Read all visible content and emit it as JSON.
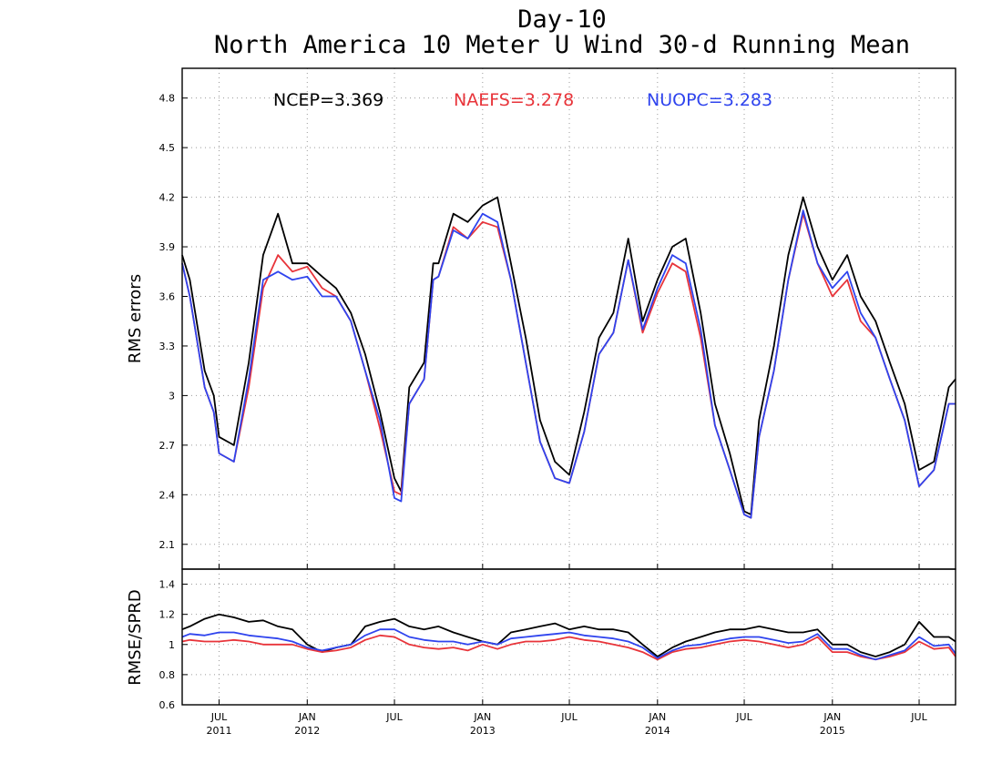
{
  "chart_data": [
    {
      "type": "line",
      "title": "Day-10",
      "subtitle": "North America 10 Meter U Wind 30-d Running Mean",
      "xlabel": "",
      "ylabel": "RMS errors",
      "ylim": [
        1.95,
        4.98
      ],
      "yticks": [
        "2.1",
        "2.4",
        "2.7",
        "3",
        "3.3",
        "3.6",
        "3.9",
        "4.2",
        "4.5",
        "4.8"
      ],
      "grid": true,
      "xlim": [
        "2011-04-15",
        "2015-09-15"
      ],
      "annotations": [
        {
          "text": "NCEP=3.369",
          "color": "#000000"
        },
        {
          "text": "NAEFS=3.278",
          "color": "#e8343a"
        },
        {
          "text": "NUOPC=3.283",
          "color": "#2f44ee"
        }
      ],
      "x": [
        "2011-04-15",
        "2011-05-01",
        "2011-06-01",
        "2011-06-20",
        "2011-07-01",
        "2011-08-01",
        "2011-09-01",
        "2011-10-01",
        "2011-11-01",
        "2011-12-01",
        "2012-01-01",
        "2012-02-01",
        "2012-03-01",
        "2012-04-01",
        "2012-05-01",
        "2012-06-01",
        "2012-07-01",
        "2012-07-15",
        "2012-08-01",
        "2012-09-01",
        "2012-09-20",
        "2012-10-01",
        "2012-11-01",
        "2012-12-01",
        "2013-01-01",
        "2013-02-01",
        "2013-03-01",
        "2013-04-01",
        "2013-05-01",
        "2013-06-01",
        "2013-07-01",
        "2013-08-01",
        "2013-09-01",
        "2013-10-01",
        "2013-11-01",
        "2013-12-01",
        "2014-01-01",
        "2014-02-01",
        "2014-03-01",
        "2014-04-01",
        "2014-05-01",
        "2014-06-01",
        "2014-07-01",
        "2014-07-15",
        "2014-08-01",
        "2014-09-01",
        "2014-10-01",
        "2014-11-01",
        "2014-12-01",
        "2015-01-01",
        "2015-02-01",
        "2015-03-01",
        "2015-04-01",
        "2015-05-01",
        "2015-06-01",
        "2015-07-01",
        "2015-08-01",
        "2015-09-01",
        "2015-09-15"
      ],
      "series": [
        {
          "name": "NCEP",
          "color": "#000000",
          "values": [
            3.85,
            3.7,
            3.15,
            3.0,
            2.75,
            2.7,
            3.2,
            3.85,
            4.1,
            3.8,
            3.8,
            3.72,
            3.65,
            3.5,
            3.25,
            2.9,
            2.5,
            2.42,
            3.05,
            3.2,
            3.8,
            3.8,
            4.1,
            4.05,
            4.15,
            4.2,
            3.8,
            3.35,
            2.85,
            2.6,
            2.52,
            2.9,
            3.35,
            3.5,
            3.95,
            3.45,
            3.7,
            3.9,
            3.95,
            3.5,
            2.95,
            2.65,
            2.3,
            2.28,
            2.85,
            3.3,
            3.85,
            4.2,
            3.9,
            3.7,
            3.85,
            3.6,
            3.45,
            3.2,
            2.95,
            2.55,
            2.6,
            3.05,
            3.1
          ]
        },
        {
          "name": "NAEFS",
          "color": "#e8343a",
          "values": [
            3.8,
            3.6,
            3.05,
            2.9,
            2.65,
            2.6,
            3.05,
            3.65,
            3.85,
            3.75,
            3.78,
            3.65,
            3.6,
            3.45,
            3.15,
            2.8,
            2.42,
            2.4,
            2.95,
            3.1,
            3.7,
            3.72,
            4.02,
            3.95,
            4.05,
            4.02,
            3.7,
            3.2,
            2.72,
            2.5,
            2.47,
            2.78,
            3.25,
            3.38,
            3.82,
            3.38,
            3.62,
            3.8,
            3.75,
            3.35,
            2.82,
            2.55,
            2.28,
            2.26,
            2.75,
            3.15,
            3.7,
            4.1,
            3.8,
            3.6,
            3.7,
            3.45,
            3.35,
            3.1,
            2.85,
            2.45,
            2.55,
            2.95,
            2.95
          ]
        },
        {
          "name": "NUOPC",
          "color": "#2f44ee",
          "values": [
            3.8,
            3.6,
            3.05,
            2.9,
            2.65,
            2.6,
            3.1,
            3.7,
            3.75,
            3.7,
            3.72,
            3.6,
            3.6,
            3.45,
            3.15,
            2.85,
            2.38,
            2.36,
            2.95,
            3.1,
            3.7,
            3.72,
            4.0,
            3.95,
            4.1,
            4.05,
            3.7,
            3.2,
            2.72,
            2.5,
            2.47,
            2.78,
            3.25,
            3.38,
            3.82,
            3.4,
            3.65,
            3.85,
            3.8,
            3.4,
            2.82,
            2.55,
            2.28,
            2.26,
            2.75,
            3.15,
            3.7,
            4.12,
            3.8,
            3.65,
            3.75,
            3.5,
            3.35,
            3.1,
            2.85,
            2.45,
            2.55,
            2.95,
            2.95
          ]
        }
      ]
    },
    {
      "type": "line",
      "title": "",
      "xlabel": "",
      "ylabel": "RMSE/SPRD",
      "ylim": [
        0.6,
        1.5
      ],
      "yticks": [
        "0.6",
        "0.8",
        "1",
        "1.2",
        "1.4"
      ],
      "grid": true,
      "xlim": [
        "2011-04-15",
        "2015-09-15"
      ],
      "xticks": [
        {
          "month": "JUL",
          "year": "2011",
          "date": "2011-07-01"
        },
        {
          "month": "JAN",
          "year": "2012",
          "date": "2012-01-01"
        },
        {
          "month": "JUL",
          "year": "",
          "date": "2012-07-01"
        },
        {
          "month": "JAN",
          "year": "2013",
          "date": "2013-01-01"
        },
        {
          "month": "JUL",
          "year": "",
          "date": "2013-07-01"
        },
        {
          "month": "JAN",
          "year": "2014",
          "date": "2014-01-01"
        },
        {
          "month": "JUL",
          "year": "",
          "date": "2014-07-01"
        },
        {
          "month": "JAN",
          "year": "2015",
          "date": "2015-01-01"
        },
        {
          "month": "JUL",
          "year": "",
          "date": "2015-07-01"
        }
      ],
      "x": [
        "2011-04-15",
        "2011-05-01",
        "2011-06-01",
        "2011-07-01",
        "2011-08-01",
        "2011-09-01",
        "2011-10-01",
        "2011-11-01",
        "2011-12-01",
        "2012-01-01",
        "2012-02-01",
        "2012-03-01",
        "2012-04-01",
        "2012-05-01",
        "2012-06-01",
        "2012-07-01",
        "2012-08-01",
        "2012-09-01",
        "2012-10-01",
        "2012-11-01",
        "2012-12-01",
        "2013-01-01",
        "2013-02-01",
        "2013-03-01",
        "2013-04-01",
        "2013-05-01",
        "2013-06-01",
        "2013-07-01",
        "2013-08-01",
        "2013-09-01",
        "2013-10-01",
        "2013-11-01",
        "2013-12-01",
        "2014-01-01",
        "2014-02-01",
        "2014-03-01",
        "2014-04-01",
        "2014-05-01",
        "2014-06-01",
        "2014-07-01",
        "2014-08-01",
        "2014-09-01",
        "2014-10-01",
        "2014-11-01",
        "2014-12-01",
        "2015-01-01",
        "2015-02-01",
        "2015-03-01",
        "2015-04-01",
        "2015-05-01",
        "2015-06-01",
        "2015-07-01",
        "2015-08-01",
        "2015-09-01",
        "2015-09-15"
      ],
      "series": [
        {
          "name": "NCEP",
          "color": "#000000",
          "values": [
            1.1,
            1.12,
            1.17,
            1.2,
            1.18,
            1.15,
            1.16,
            1.12,
            1.1,
            1.0,
            0.95,
            0.98,
            1.0,
            1.12,
            1.15,
            1.17,
            1.12,
            1.1,
            1.12,
            1.08,
            1.05,
            1.02,
            1.0,
            1.08,
            1.1,
            1.12,
            1.14,
            1.1,
            1.12,
            1.1,
            1.1,
            1.08,
            1.0,
            0.92,
            0.98,
            1.02,
            1.05,
            1.08,
            1.1,
            1.1,
            1.12,
            1.1,
            1.08,
            1.08,
            1.1,
            1.0,
            1.0,
            0.95,
            0.92,
            0.95,
            1.0,
            1.15,
            1.05,
            1.05,
            1.02
          ]
        },
        {
          "name": "NAEFS",
          "color": "#e8343a",
          "values": [
            1.02,
            1.03,
            1.02,
            1.02,
            1.03,
            1.02,
            1.0,
            1.0,
            1.0,
            0.97,
            0.95,
            0.96,
            0.98,
            1.03,
            1.06,
            1.05,
            1.0,
            0.98,
            0.97,
            0.98,
            0.96,
            1.0,
            0.97,
            1.0,
            1.02,
            1.02,
            1.03,
            1.05,
            1.03,
            1.02,
            1.0,
            0.98,
            0.95,
            0.9,
            0.95,
            0.97,
            0.98,
            1.0,
            1.02,
            1.03,
            1.02,
            1.0,
            0.98,
            1.0,
            1.05,
            0.95,
            0.95,
            0.92,
            0.9,
            0.92,
            0.95,
            1.02,
            0.97,
            0.98,
            0.92
          ]
        },
        {
          "name": "NUOPC",
          "color": "#2f44ee",
          "values": [
            1.05,
            1.07,
            1.06,
            1.08,
            1.08,
            1.06,
            1.05,
            1.04,
            1.02,
            0.98,
            0.96,
            0.98,
            1.0,
            1.06,
            1.1,
            1.1,
            1.05,
            1.03,
            1.02,
            1.02,
            1.0,
            1.02,
            1.0,
            1.04,
            1.05,
            1.06,
            1.07,
            1.08,
            1.06,
            1.05,
            1.04,
            1.02,
            0.98,
            0.91,
            0.96,
            0.99,
            1.0,
            1.02,
            1.04,
            1.05,
            1.05,
            1.03,
            1.01,
            1.02,
            1.07,
            0.97,
            0.97,
            0.93,
            0.9,
            0.93,
            0.96,
            1.05,
            0.99,
            1.0,
            0.94
          ]
        }
      ]
    }
  ]
}
